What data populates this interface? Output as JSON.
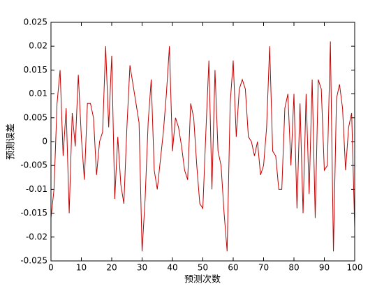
{
  "chart_data": {
    "type": "line",
    "xlabel": "预测次数",
    "ylabel": "预测误差",
    "x": [
      0,
      1,
      2,
      3,
      4,
      5,
      6,
      7,
      8,
      9,
      10,
      11,
      12,
      13,
      14,
      15,
      16,
      17,
      18,
      19,
      20,
      21,
      22,
      23,
      24,
      25,
      26,
      27,
      28,
      29,
      30,
      31,
      32,
      33,
      34,
      35,
      36,
      37,
      38,
      39,
      40,
      41,
      42,
      43,
      44,
      45,
      46,
      47,
      48,
      49,
      50,
      51,
      52,
      53,
      54,
      55,
      56,
      57,
      58,
      59,
      60,
      61,
      62,
      63,
      64,
      65,
      66,
      67,
      68,
      69,
      70,
      71,
      72,
      73,
      74,
      75,
      76,
      77,
      78,
      79,
      80,
      81,
      82,
      83,
      84,
      85,
      86,
      87,
      88,
      89,
      90,
      91,
      92,
      93,
      94,
      95,
      96,
      97,
      98,
      99,
      100
    ],
    "series": [
      {
        "name": "预测误差",
        "color": "#c00000",
        "values": [
          -0.016,
          -0.01,
          0.008,
          0.015,
          -0.003,
          0.007,
          -0.015,
          0.006,
          -0.001,
          0.014,
          0.001,
          -0.008,
          0.008,
          0.008,
          0.005,
          -0.007,
          0.0,
          0.002,
          0.02,
          0.003,
          0.018,
          -0.012,
          0.001,
          -0.009,
          -0.013,
          0.003,
          0.016,
          0.012,
          0.008,
          0.004,
          -0.023,
          -0.012,
          0.004,
          0.013,
          -0.006,
          -0.01,
          -0.004,
          0.002,
          0.01,
          0.02,
          -0.002,
          0.005,
          0.003,
          -0.001,
          -0.006,
          -0.008,
          0.008,
          0.005,
          -0.005,
          -0.013,
          -0.014,
          0.002,
          0.017,
          -0.01,
          0.015,
          -0.002,
          -0.005,
          -0.015,
          -0.023,
          0.008,
          0.017,
          0.001,
          0.011,
          0.013,
          0.011,
          0.001,
          0.0,
          -0.003,
          0.0,
          -0.007,
          -0.005,
          0.003,
          0.02,
          -0.002,
          -0.003,
          -0.01,
          -0.01,
          0.007,
          0.01,
          -0.005,
          0.01,
          -0.014,
          0.008,
          -0.015,
          0.01,
          -0.011,
          0.013,
          -0.016,
          0.013,
          0.011,
          -0.006,
          -0.005,
          0.021,
          -0.023,
          0.009,
          0.012,
          0.007,
          -0.006,
          0.003,
          0.006,
          -0.018
        ]
      }
    ],
    "xlim": [
      0,
      100
    ],
    "xticks": [
      0,
      10,
      20,
      30,
      40,
      50,
      60,
      70,
      80,
      90,
      100
    ],
    "ylim": [
      -0.025,
      0.025
    ],
    "yticks": [
      -0.025,
      -0.02,
      -0.015,
      -0.01,
      -0.005,
      0,
      0.005,
      0.01,
      0.015,
      0.02,
      0.025
    ],
    "grid": false
  }
}
